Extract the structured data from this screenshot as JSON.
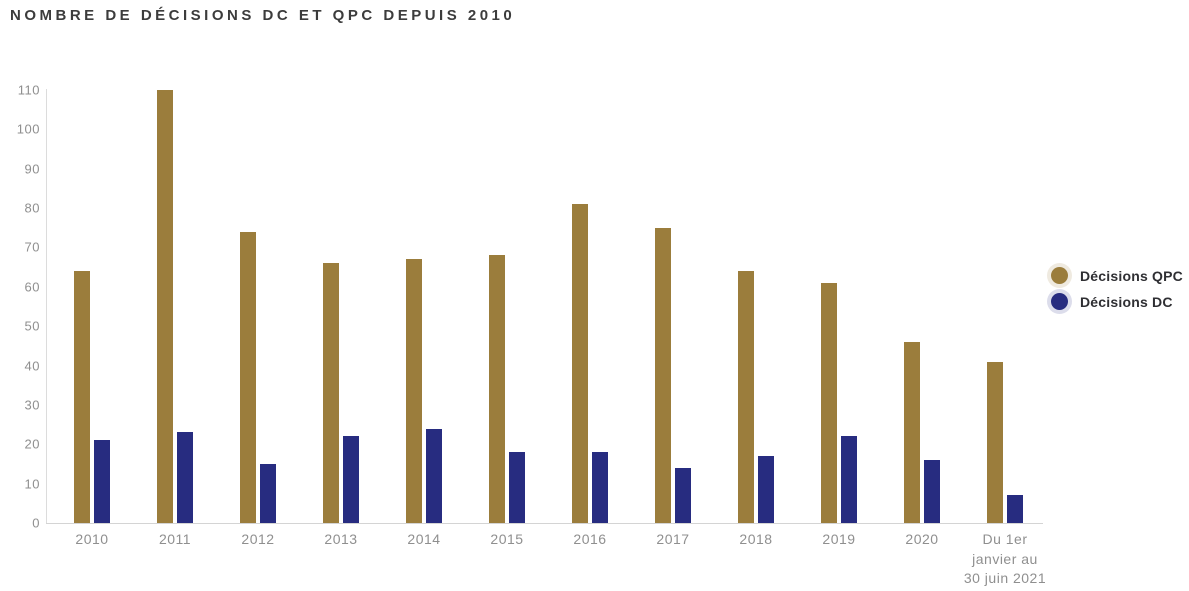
{
  "chart_data": {
    "type": "bar",
    "title": "NOMBRE DE DÉCISIONS DC ET QPC DEPUIS 2010",
    "categories": [
      "2010",
      "2011",
      "2012",
      "2013",
      "2014",
      "2015",
      "2016",
      "2017",
      "2018",
      "2019",
      "2020",
      "Du 1er\njanvier au\n30 juin 2021"
    ],
    "series": [
      {
        "name": "Décisions QPC",
        "color": "#9B7D3C",
        "values": [
          64,
          110,
          74,
          66,
          67,
          68,
          81,
          75,
          64,
          61,
          46,
          41
        ]
      },
      {
        "name": "Décisions DC",
        "color": "#272C80",
        "values": [
          21,
          23,
          15,
          22,
          24,
          18,
          18,
          14,
          17,
          22,
          16,
          7
        ]
      }
    ],
    "ylim": [
      0,
      110
    ],
    "yticks": [
      0,
      10,
      20,
      30,
      40,
      50,
      60,
      70,
      80,
      90,
      100,
      110
    ],
    "grid": false,
    "legend_position": "right",
    "xlabel": "",
    "ylabel": ""
  },
  "colors": {
    "background": "#FFFFFF",
    "axis_line": "#DCDCDC",
    "tick_text": "#8F8F8F",
    "title_text": "#3C3C3C",
    "legend_text": "#2F2F33"
  }
}
